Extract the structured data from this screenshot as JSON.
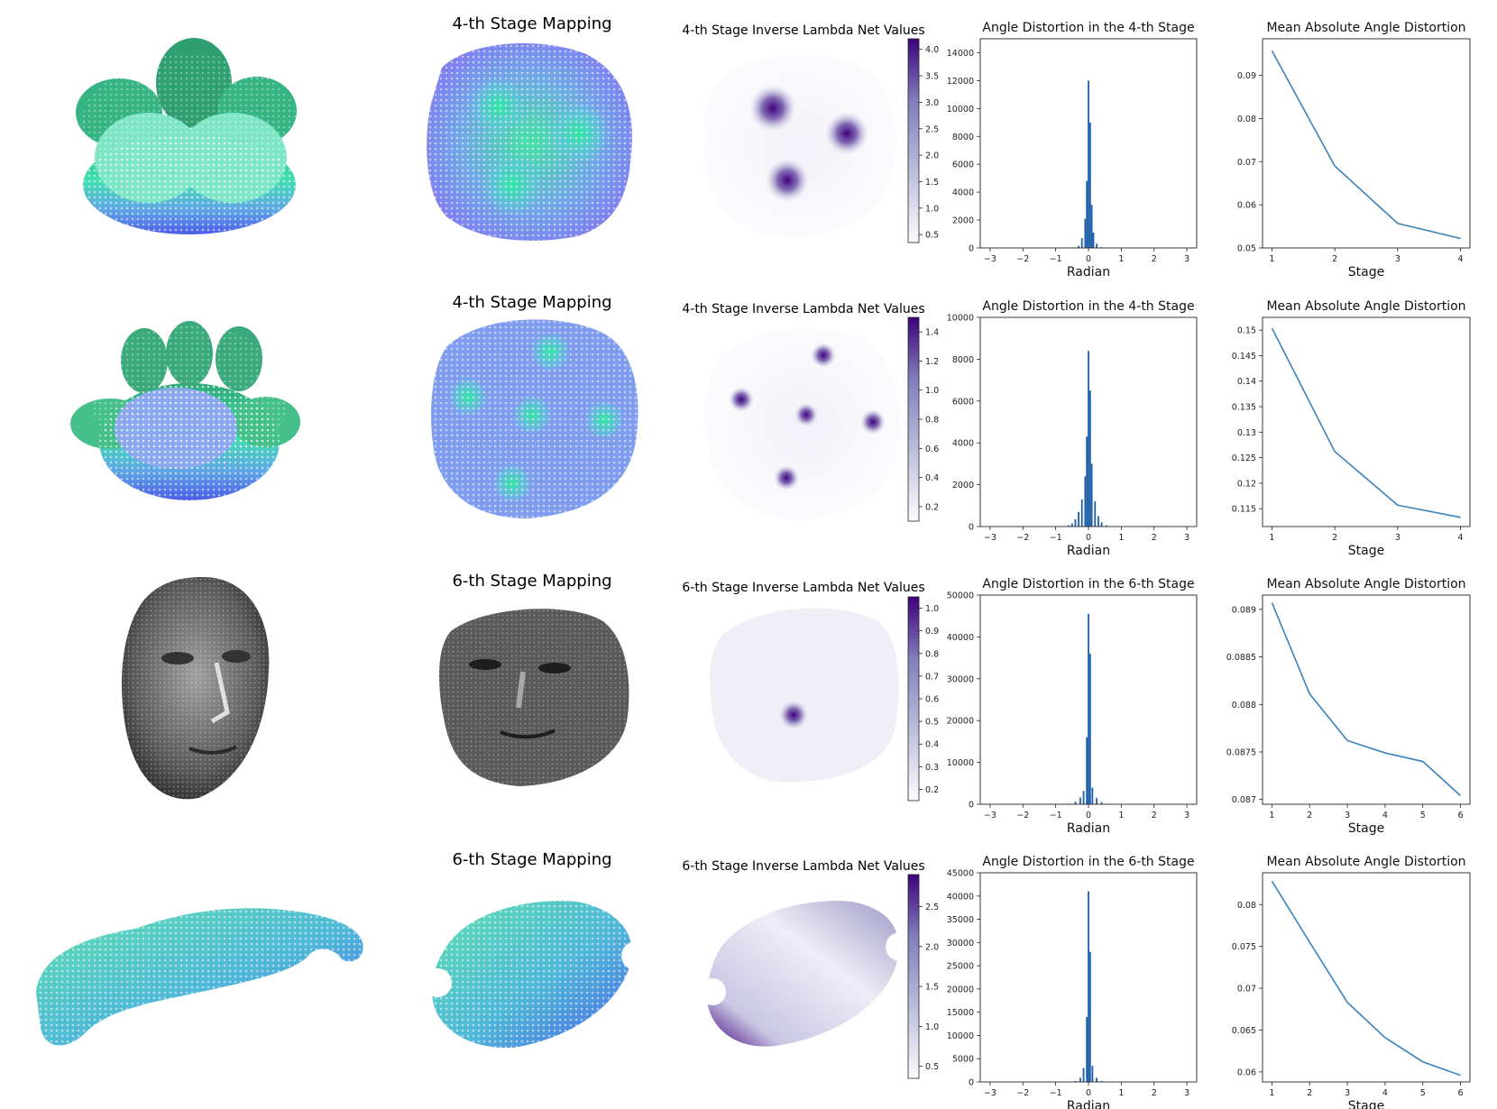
{
  "colors": {
    "bar": "#1f5fa8",
    "line": "#3b83bd",
    "cmap_low": "#f7f6fb",
    "cmap_high": "#3f007d",
    "map_green": "#3ee0a0",
    "map_blue": "#4a63e6",
    "face_gray": "#6a6a6a",
    "car_green": "#4fd8a8"
  },
  "rows": [
    {
      "mesh": "flower-4-petal-point-cloud",
      "mapping_title": "4-th Stage Mapping",
      "lambda_title": "4-th Stage Inverse Lambda Net Values",
      "colorbar": {
        "range": [
          0.35,
          4.2
        ],
        "ticks": [
          "0.5",
          "1.0",
          "1.5",
          "2.0",
          "2.5",
          "3.0",
          "3.5",
          "4.0"
        ],
        "tick_values": [
          0.5,
          1.0,
          1.5,
          2.0,
          2.5,
          3.0,
          3.5,
          4.0
        ]
      },
      "hist_title": "Angle Distortion in the 4-th Stage",
      "line_title": "Mean Absolute Angle Distortion"
    },
    {
      "mesh": "flower-5-petal-point-cloud",
      "mapping_title": "4-th Stage Mapping",
      "lambda_title": "4-th Stage Inverse Lambda Net Values",
      "colorbar": {
        "range": [
          0.1,
          1.5
        ],
        "ticks": [
          "0.2",
          "0.4",
          "0.6",
          "0.8",
          "1.0",
          "1.2",
          "1.4"
        ],
        "tick_values": [
          0.2,
          0.4,
          0.6,
          0.8,
          1.0,
          1.2,
          1.4
        ]
      },
      "hist_title": "Angle Distortion in the 4-th Stage",
      "line_title": "Mean Absolute Angle Distortion"
    },
    {
      "mesh": "human-face-point-cloud",
      "mapping_title": "6-th Stage Mapping",
      "lambda_title": "6-th Stage Inverse Lambda Net Values",
      "colorbar": {
        "range": [
          0.15,
          1.05
        ],
        "ticks": [
          "0.2",
          "0.3",
          "0.4",
          "0.5",
          "0.6",
          "0.7",
          "0.8",
          "0.9",
          "1.0"
        ],
        "tick_values": [
          0.2,
          0.3,
          0.4,
          0.5,
          0.6,
          0.7,
          0.8,
          0.9,
          1.0
        ]
      },
      "hist_title": "Angle Distortion in the 6-th Stage",
      "line_title": "Mean Absolute Angle Distortion"
    },
    {
      "mesh": "car-body-point-cloud",
      "mapping_title": "6-th Stage Mapping",
      "lambda_title": "6-th Stage Inverse Lambda Net Values",
      "colorbar": {
        "range": [
          0.35,
          2.9
        ],
        "ticks": [
          "0.5",
          "1.0",
          "1.5",
          "2.0",
          "2.5"
        ],
        "tick_values": [
          0.5,
          1.0,
          1.5,
          2.0,
          2.5
        ]
      },
      "hist_title": "Angle Distortion in the 6-th Stage",
      "line_title": "Mean Absolute Angle Distortion"
    }
  ],
  "chart_data": [
    {
      "type": "bar",
      "title": "Angle Distortion in the 4-th Stage",
      "xlabel": "Radian",
      "ylabel": "",
      "xlim": [
        -3.3,
        3.3
      ],
      "ylim": [
        0,
        15000
      ],
      "xticks": [
        -3,
        -2,
        -1,
        0,
        1,
        2,
        3
      ],
      "yticks": [
        0,
        2000,
        4000,
        6000,
        8000,
        10000,
        12000,
        14000
      ],
      "bins": [
        {
          "x": -0.4,
          "value": 30
        },
        {
          "x": -0.3,
          "value": 150
        },
        {
          "x": -0.2,
          "value": 700
        },
        {
          "x": -0.1,
          "value": 2100
        },
        {
          "x": -0.05,
          "value": 4800
        },
        {
          "x": 0.0,
          "value": 12000
        },
        {
          "x": 0.05,
          "value": 9000
        },
        {
          "x": 0.1,
          "value": 3100
        },
        {
          "x": 0.15,
          "value": 1100
        },
        {
          "x": 0.25,
          "value": 300
        },
        {
          "x": 0.4,
          "value": 50
        }
      ]
    },
    {
      "type": "line",
      "title": "Mean Absolute Angle Distortion",
      "xlabel": "Stage",
      "ylabel": "",
      "x": [
        1,
        2,
        3,
        4
      ],
      "values": [
        0.0957,
        0.069,
        0.0557,
        0.0522
      ],
      "xlim": [
        0.85,
        4.15
      ],
      "ylim": [
        0.05,
        0.0985
      ],
      "xticks": [
        1,
        2,
        3,
        4
      ],
      "yticks": [
        0.05,
        0.06,
        0.07,
        0.08,
        0.09
      ]
    },
    {
      "type": "bar",
      "title": "Angle Distortion in the 4-th Stage",
      "xlabel": "Radian",
      "ylabel": "",
      "xlim": [
        -3.3,
        3.3
      ],
      "ylim": [
        0,
        10000
      ],
      "xticks": [
        -3,
        -2,
        -1,
        0,
        1,
        2,
        3
      ],
      "yticks": [
        0,
        2000,
        4000,
        6000,
        8000,
        10000
      ],
      "bins": [
        {
          "x": -0.6,
          "value": 60
        },
        {
          "x": -0.5,
          "value": 150
        },
        {
          "x": -0.4,
          "value": 350
        },
        {
          "x": -0.3,
          "value": 700
        },
        {
          "x": -0.2,
          "value": 1300
        },
        {
          "x": -0.1,
          "value": 2400
        },
        {
          "x": -0.05,
          "value": 4300
        },
        {
          "x": 0.0,
          "value": 8400
        },
        {
          "x": 0.05,
          "value": 6500
        },
        {
          "x": 0.1,
          "value": 3000
        },
        {
          "x": 0.2,
          "value": 1200
        },
        {
          "x": 0.3,
          "value": 500
        },
        {
          "x": 0.4,
          "value": 200
        },
        {
          "x": 0.55,
          "value": 60
        }
      ]
    },
    {
      "type": "line",
      "title": "Mean Absolute Angle Distortion",
      "xlabel": "Stage",
      "ylabel": "",
      "x": [
        1,
        2,
        3,
        4
      ],
      "values": [
        0.1504,
        0.1262,
        0.1157,
        0.1133
      ],
      "xlim": [
        0.85,
        4.15
      ],
      "ylim": [
        0.1115,
        0.1525
      ],
      "xticks": [
        1,
        2,
        3,
        4
      ],
      "yticks": [
        0.115,
        0.12,
        0.125,
        0.13,
        0.135,
        0.14,
        0.145,
        0.15
      ]
    },
    {
      "type": "bar",
      "title": "Angle Distortion in the 6-th Stage",
      "xlabel": "Radian",
      "ylabel": "",
      "xlim": [
        -3.3,
        3.3
      ],
      "ylim": [
        0,
        50000
      ],
      "xticks": [
        -3,
        -2,
        -1,
        0,
        1,
        2,
        3
      ],
      "yticks": [
        0,
        10000,
        20000,
        30000,
        40000,
        50000
      ],
      "bins": [
        {
          "x": -0.6,
          "value": 150
        },
        {
          "x": -0.4,
          "value": 600
        },
        {
          "x": -0.25,
          "value": 1600
        },
        {
          "x": -0.15,
          "value": 3200
        },
        {
          "x": -0.05,
          "value": 16000
        },
        {
          "x": 0.0,
          "value": 45500
        },
        {
          "x": 0.05,
          "value": 36000
        },
        {
          "x": 0.12,
          "value": 4000
        },
        {
          "x": 0.25,
          "value": 1500
        },
        {
          "x": 0.4,
          "value": 500
        },
        {
          "x": 0.6,
          "value": 120
        }
      ]
    },
    {
      "type": "line",
      "title": "Mean Absolute Angle Distortion",
      "xlabel": "Stage",
      "ylabel": "",
      "x": [
        1,
        2,
        3,
        4,
        5,
        6
      ],
      "values": [
        0.08907,
        0.08811,
        0.08762,
        0.08749,
        0.0874,
        0.08704
      ],
      "xlim": [
        0.75,
        6.25
      ],
      "ylim": [
        0.08695,
        0.08915
      ],
      "xticks": [
        1,
        2,
        3,
        4,
        5,
        6
      ],
      "yticks": [
        0.087,
        0.0875,
        0.088,
        0.0885,
        0.089
      ]
    },
    {
      "type": "bar",
      "title": "Angle Distortion in the 6-th Stage",
      "xlabel": "Radian",
      "ylabel": "",
      "xlim": [
        -3.3,
        3.3
      ],
      "ylim": [
        0,
        45000
      ],
      "xticks": [
        -3,
        -2,
        -1,
        0,
        1,
        2,
        3
      ],
      "yticks": [
        0,
        5000,
        10000,
        15000,
        20000,
        25000,
        30000,
        35000,
        40000,
        45000
      ],
      "bins": [
        {
          "x": -0.4,
          "value": 200
        },
        {
          "x": -0.25,
          "value": 900
        },
        {
          "x": -0.15,
          "value": 3000
        },
        {
          "x": -0.05,
          "value": 14000
        },
        {
          "x": 0.0,
          "value": 41000
        },
        {
          "x": 0.05,
          "value": 28000
        },
        {
          "x": 0.12,
          "value": 3500
        },
        {
          "x": 0.25,
          "value": 900
        },
        {
          "x": 0.4,
          "value": 200
        }
      ]
    },
    {
      "type": "line",
      "title": "Mean Absolute Angle Distortion",
      "xlabel": "Stage",
      "ylabel": "",
      "x": [
        1,
        2,
        3,
        4,
        5,
        6
      ],
      "values": [
        0.0828,
        0.0755,
        0.0683,
        0.0641,
        0.0612,
        0.0596
      ],
      "xlim": [
        0.75,
        6.25
      ],
      "ylim": [
        0.0588,
        0.0838
      ],
      "xticks": [
        1,
        2,
        3,
        4,
        5,
        6
      ],
      "yticks": [
        0.06,
        0.065,
        0.07,
        0.075,
        0.08
      ]
    }
  ]
}
